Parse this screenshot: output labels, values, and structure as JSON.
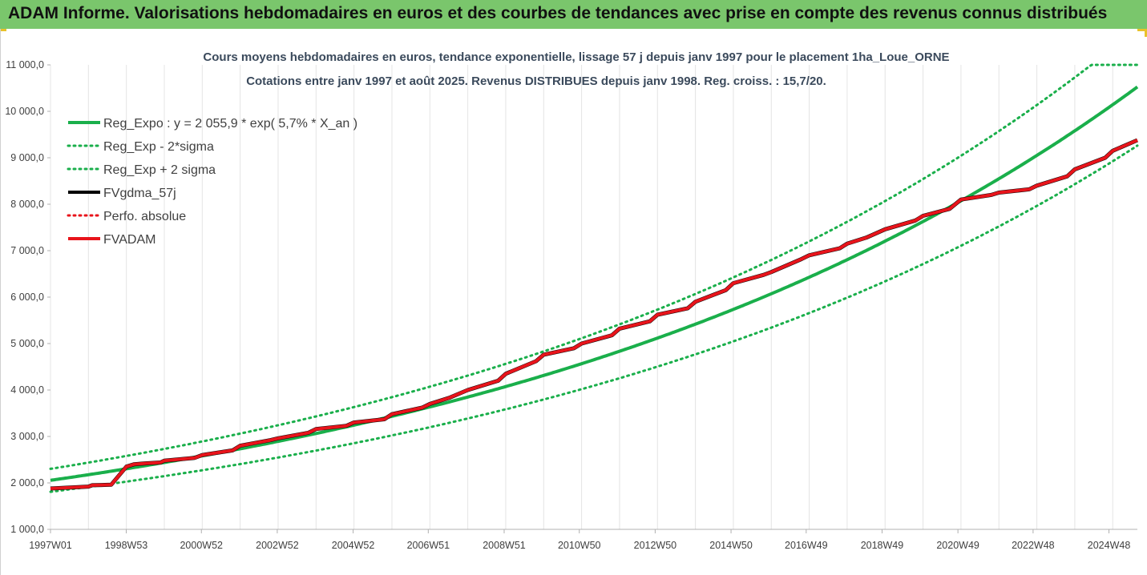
{
  "header": {
    "banner": "ADAM Informe. Valorisations hebdomadaires en euros et des courbes de tendances avec prise en compte des revenus connus distribués"
  },
  "chart_data": {
    "type": "line",
    "title": "Cours moyens hebdomadaires en euros, tendance exponentielle, lissage 57 j depuis janv 1997  pour le placement 1ha_Loue_ORNE",
    "subtitle": "Cotations entre janv 1997 et août 2025. Revenus DISTRIBUES depuis janv 1998. Reg. croiss. : 15,7/20.",
    "yticks": [
      "1 000,0",
      "2 000,0",
      "3 000,0",
      "4 000,0",
      "5 000,0",
      "6 000,0",
      "7 000,0",
      "8 000,0",
      "9 000,0",
      "10 000,0",
      "11 000,0"
    ],
    "xticks": [
      "1997W01",
      "1998W53",
      "2000W52",
      "2002W52",
      "2004W52",
      "2006W51",
      "2008W51",
      "2010W50",
      "2012W50",
      "2014W50",
      "2016W49",
      "2018W49",
      "2020W49",
      "2022W48",
      "2024W48"
    ],
    "ylim": [
      1000,
      11000
    ],
    "xlim": [
      1997.0,
      2025.65
    ],
    "grid": "vertical",
    "legend_position": "top-left",
    "regression": {
      "a": 2055.9,
      "rate": 0.057,
      "sigma_factor": 0.12
    },
    "series": [
      {
        "name": "Reg_Expo : y = 2 055,9 * exp( 5,7% *  X_an )",
        "color": "#1aaf4b",
        "style": "solid",
        "width": 4
      },
      {
        "name": "Reg_Exp - 2*sigma",
        "color": "#1aaf4b",
        "style": "dotted",
        "width": 3
      },
      {
        "name": "Reg_Exp + 2 sigma",
        "color": "#1aaf4b",
        "style": "dotted",
        "width": 3
      },
      {
        "name": "FVgdma_57j",
        "color": "#000000",
        "style": "solid",
        "width": 3
      },
      {
        "name": "Perfo. absolue",
        "color": "#e8141b",
        "style": "dotted",
        "width": 2
      },
      {
        "name": "FVADAM",
        "color": "#e8141b",
        "style": "solid",
        "width": 4,
        "x": [
          1997.0,
          1998.0,
          1998.1,
          1998.6,
          1999.0,
          1999.2,
          1999.5,
          1999.9,
          2000.0,
          2000.8,
          2001.0,
          2001.8,
          2002.0,
          2002.8,
          2003.0,
          2003.8,
          2004.0,
          2004.8,
          2005.0,
          2005.8,
          2006.0,
          2006.8,
          2007.0,
          2007.5,
          2008.0,
          2008.8,
          2009.0,
          2009.8,
          2010.0,
          2010.8,
          2011.0,
          2011.8,
          2012.0,
          2012.8,
          2013.0,
          2013.8,
          2014.0,
          2014.8,
          2015.0,
          2015.8,
          2016.0,
          2016.8,
          2017.0,
          2017.8,
          2018.0,
          2018.5,
          2019.0,
          2019.8,
          2020.0,
          2020.7,
          2021.0,
          2021.8,
          2022.0,
          2022.8,
          2023.0,
          2023.8,
          2024.0,
          2024.8,
          2025.0,
          2025.65
        ],
        "y": [
          1880,
          1920,
          1950,
          1960,
          2350,
          2400,
          2420,
          2440,
          2480,
          2540,
          2600,
          2700,
          2800,
          2920,
          2960,
          3080,
          3160,
          3230,
          3300,
          3370,
          3480,
          3620,
          3700,
          3830,
          4000,
          4200,
          4350,
          4620,
          4760,
          4900,
          5000,
          5180,
          5320,
          5480,
          5620,
          5760,
          5900,
          6150,
          6300,
          6480,
          6540,
          6820,
          6900,
          7050,
          7150,
          7280,
          7460,
          7650,
          7750,
          7900,
          8100,
          8200,
          8250,
          8320,
          8400,
          8600,
          8750,
          9000,
          9150,
          9380
        ]
      }
    ]
  }
}
